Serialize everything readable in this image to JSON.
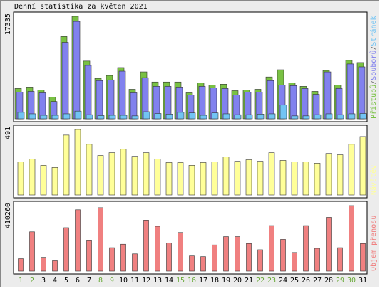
{
  "title": "Denní statistika za květen 2021",
  "legend_separator": "/",
  "chart_data": [
    {
      "type": "bar",
      "ylim": [
        0,
        17335
      ],
      "series": [
        {
          "name": "Přístupů",
          "color": "#79c143",
          "values": [
            5130,
            5370,
            4880,
            3660,
            13920,
            17335,
            9770,
            6840,
            7330,
            8670,
            5000,
            7940,
            6230,
            6230,
            6230,
            4400,
            6100,
            5740,
            5860,
            4760,
            4880,
            5000,
            7080,
            8300,
            6100,
            5490,
            4640,
            8180,
            5740,
            9890,
            9520
          ]
        },
        {
          "name": "Souborů",
          "color": "#8181ee",
          "values": [
            4520,
            4640,
            4400,
            2930,
            12940,
            16480,
            9030,
            6470,
            6590,
            8060,
            4400,
            6960,
            5490,
            5490,
            5370,
            4030,
            5490,
            5250,
            5130,
            4030,
            4520,
            4520,
            6470,
            5740,
            5620,
            5130,
            4150,
            7940,
            5130,
            9280,
            8790
          ]
        },
        {
          "name": "Stránek",
          "color": "#72c4f4",
          "values": [
            1100,
            850,
            600,
            600,
            850,
            1300,
            700,
            550,
            600,
            600,
            500,
            1200,
            900,
            800,
            1100,
            1000,
            600,
            1000,
            850,
            700,
            700,
            800,
            850,
            2320,
            500,
            500,
            700,
            850,
            700,
            850,
            900
          ]
        }
      ]
    },
    {
      "type": "bar",
      "ylim": [
        0,
        491
      ],
      "series": [
        {
          "name": "Návštěv",
          "color": "#ffff99",
          "values": [
            248,
            269,
            222,
            206,
            449,
            491,
            380,
            296,
            317,
            343,
            290,
            317,
            269,
            243,
            243,
            222,
            243,
            248,
            285,
            253,
            264,
            253,
            317,
            259,
            248,
            248,
            238,
            311,
            301,
            380,
            438
          ]
        }
      ]
    },
    {
      "type": "bar",
      "ylim": [
        0,
        410260
      ],
      "categories": [
        "1",
        "2",
        "3",
        "4",
        "5",
        "6",
        "7",
        "8",
        "9",
        "10",
        "11",
        "12",
        "13",
        "14",
        "15",
        "16",
        "17",
        "18",
        "19",
        "20",
        "21",
        "22",
        "23",
        "24",
        "25",
        "26",
        "27",
        "28",
        "29",
        "30",
        "31"
      ],
      "category_colors": [
        "#6aaa3a",
        "#6aaa3a",
        "#000",
        "#000",
        "#000",
        "#000",
        "#000",
        "#6aaa3a",
        "#6aaa3a",
        "#000",
        "#000",
        "#000",
        "#000",
        "#000",
        "#6aaa3a",
        "#6aaa3a",
        "#000",
        "#000",
        "#000",
        "#000",
        "#000",
        "#6aaa3a",
        "#6aaa3a",
        "#000",
        "#000",
        "#000",
        "#000",
        "#000",
        "#6aaa3a",
        "#6aaa3a",
        "#000"
      ],
      "series": [
        {
          "name": "Objem přenosu",
          "color": "#f08080",
          "values": [
            77730,
            246160,
            86370,
            64780,
            272070,
            384350,
            190020,
            397310,
            146830,
            168420,
            107960,
            319570,
            280700,
            177060,
            241840,
            95010,
            90690,
            164100,
            215930,
            215930,
            172740,
            133870,
            285020,
            198650,
            116600,
            285020,
            142510,
            336850,
            146830,
            410260,
            172740
          ]
        }
      ]
    }
  ]
}
